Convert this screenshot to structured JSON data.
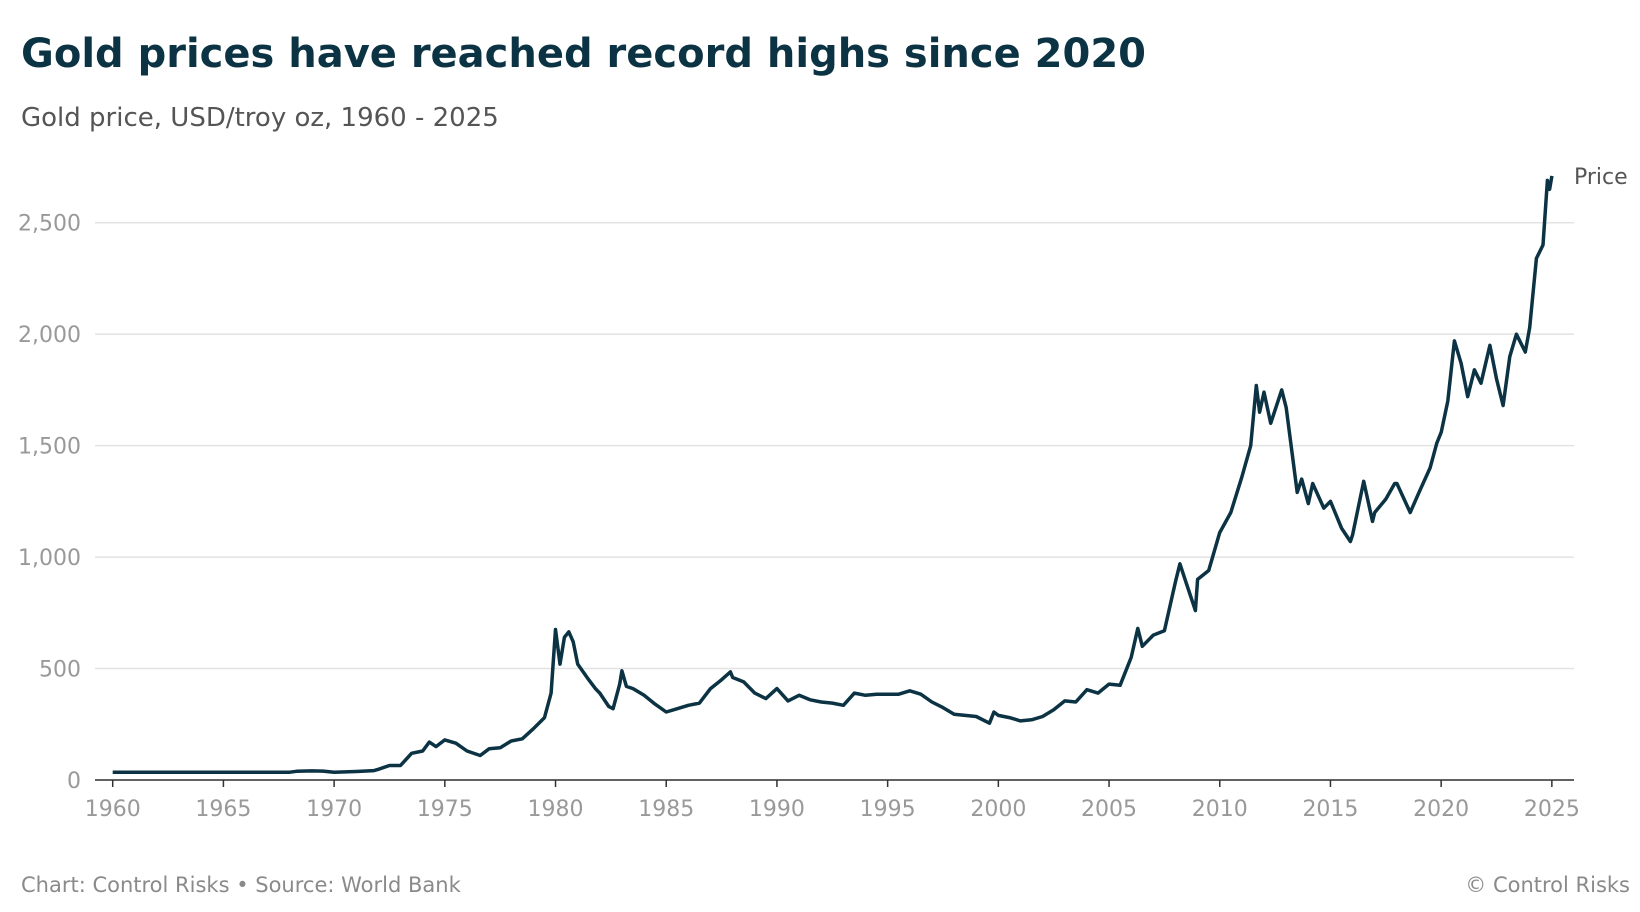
{
  "chart_data": {
    "type": "line",
    "title": "Gold prices have reached record highs since 2020",
    "subtitle": "Gold price, USD/troy oz, 1960 - 2025",
    "source": "Chart: Control Risks • Source: World Bank",
    "credit": "© Control Risks",
    "x": [
      1960,
      1968,
      1968.3,
      1969,
      1969.5,
      1970,
      1971,
      1971.8,
      1972,
      1972.5,
      1973,
      1973.5,
      1974,
      1974.3,
      1974.6,
      1975,
      1975.5,
      1976,
      1976.6,
      1977,
      1977.5,
      1978,
      1978.5,
      1979,
      1979.5,
      1979.8,
      1980,
      1980.2,
      1980.4,
      1980.6,
      1980.8,
      1981,
      1981.5,
      1981.8,
      1982,
      1982.4,
      1982.6,
      1982.9,
      1983,
      1983.2,
      1983.5,
      1984,
      1984.5,
      1985,
      1985.5,
      1986,
      1986.5,
      1987,
      1987.5,
      1987.9,
      1988,
      1988.5,
      1989,
      1989.5,
      1990,
      1990.5,
      1991,
      1991.5,
      1992,
      1992.5,
      1993,
      1993.5,
      1994,
      1994.5,
      1995,
      1995.5,
      1996,
      1996.5,
      1997,
      1997.5,
      1998,
      1998.5,
      1999,
      1999.6,
      1999.8,
      2000,
      2000.5,
      2001,
      2001.5,
      2002,
      2002.5,
      2003,
      2003.5,
      2004,
      2004.5,
      2005,
      2005.5,
      2006,
      2006.3,
      2006.5,
      2007,
      2007.5,
      2008,
      2008.2,
      2008.5,
      2008.9,
      2009,
      2009.5,
      2010,
      2010.5,
      2011,
      2011.4,
      2011.65,
      2011.8,
      2012,
      2012.3,
      2012.8,
      2013,
      2013.5,
      2013.7,
      2014,
      2014.2,
      2014.7,
      2015,
      2015.5,
      2015.9,
      2016,
      2016.5,
      2016.9,
      2017,
      2017.5,
      2017.9,
      2018,
      2018.6,
      2019,
      2019.5,
      2019.8,
      2020,
      2020.3,
      2020.6,
      2020.9,
      2021.2,
      2021.5,
      2021.8,
      2022.2,
      2022.5,
      2022.8,
      2023.1,
      2023.4,
      2023.8,
      2024,
      2024.3,
      2024.6,
      2024.8,
      2024.9,
      2025
    ],
    "series": [
      {
        "name": "Price",
        "color": "#0b3343",
        "values": [
          35,
          35,
          39,
          41,
          40,
          35,
          38,
          42,
          48,
          65,
          65,
          120,
          130,
          170,
          150,
          180,
          165,
          130,
          110,
          140,
          145,
          175,
          185,
          230,
          280,
          390,
          675,
          520,
          640,
          665,
          620,
          520,
          450,
          410,
          390,
          330,
          320,
          430,
          490,
          420,
          410,
          380,
          340,
          305,
          320,
          335,
          345,
          410,
          450,
          485,
          460,
          440,
          390,
          365,
          410,
          355,
          380,
          360,
          350,
          345,
          335,
          390,
          380,
          385,
          385,
          385,
          400,
          385,
          350,
          325,
          295,
          290,
          285,
          255,
          305,
          290,
          280,
          265,
          270,
          285,
          315,
          355,
          350,
          405,
          390,
          430,
          425,
          550,
          680,
          600,
          650,
          670,
          890,
          970,
          880,
          760,
          900,
          940,
          1110,
          1200,
          1360,
          1500,
          1770,
          1650,
          1740,
          1600,
          1750,
          1670,
          1290,
          1350,
          1240,
          1330,
          1220,
          1250,
          1130,
          1070,
          1100,
          1340,
          1160,
          1200,
          1260,
          1330,
          1330,
          1200,
          1290,
          1400,
          1510,
          1560,
          1700,
          1970,
          1870,
          1720,
          1840,
          1780,
          1950,
          1800,
          1680,
          1900,
          2000,
          1920,
          2030,
          2340,
          2400,
          2690,
          2650,
          2710
        ]
      }
    ],
    "xlim": [
      1959.2,
      2026
    ],
    "xticks": [
      1960,
      1965,
      1970,
      1975,
      1980,
      1985,
      1990,
      1995,
      2000,
      2005,
      2010,
      2015,
      2020,
      2025
    ],
    "ylim": [
      0,
      2750
    ],
    "yticks": [
      0,
      500,
      {
        "value": 1000,
        "label": "1,000"
      },
      {
        "value": 1500,
        "label": "1,500"
      },
      {
        "value": 2000,
        "label": "2,000"
      },
      {
        "value": 2500,
        "label": "2,500"
      }
    ],
    "grid": true
  }
}
